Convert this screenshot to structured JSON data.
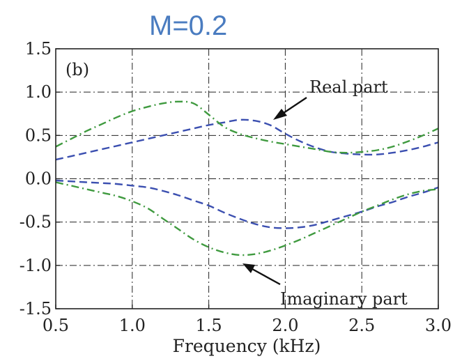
{
  "chart_data": {
    "type": "line",
    "title": "M=0.2",
    "panel_label": "(b)",
    "xlabel": "Frequency (kHz)",
    "ylabel": "",
    "xlim": [
      0.5,
      3.0
    ],
    "ylim": [
      -1.5,
      1.5
    ],
    "xticks": [
      "0.5",
      "1.0",
      "1.5",
      "2.0",
      "2.5",
      "3.0"
    ],
    "yticks": [
      "1.5",
      "1.0",
      "0.5",
      "0.0",
      "-0.5",
      "-1.0",
      "-1.5"
    ],
    "grid": true,
    "annotations": [
      {
        "text": "Real part"
      },
      {
        "text": "Imaginary part"
      }
    ],
    "series": [
      {
        "part": "real",
        "style": "dashed",
        "color": "#3b4fb0",
        "x": [
          0.5,
          0.6,
          0.7,
          0.8,
          0.9,
          1.0,
          1.1,
          1.2,
          1.3,
          1.4,
          1.5,
          1.6,
          1.7,
          1.8,
          1.9,
          2.0,
          2.1,
          2.2,
          2.3,
          2.4,
          2.5,
          2.6,
          2.7,
          2.8,
          2.9,
          3.0
        ],
        "y": [
          0.22,
          0.26,
          0.3,
          0.34,
          0.38,
          0.42,
          0.46,
          0.5,
          0.54,
          0.58,
          0.62,
          0.65,
          0.68,
          0.67,
          0.62,
          0.52,
          0.43,
          0.36,
          0.31,
          0.29,
          0.28,
          0.28,
          0.3,
          0.33,
          0.37,
          0.42
        ]
      },
      {
        "part": "real",
        "style": "dash-dot",
        "color": "#3f9a3f",
        "x": [
          0.5,
          0.6,
          0.7,
          0.8,
          0.9,
          1.0,
          1.1,
          1.2,
          1.3,
          1.4,
          1.5,
          1.6,
          1.7,
          1.8,
          1.9,
          2.0,
          2.1,
          2.2,
          2.3,
          2.4,
          2.5,
          2.6,
          2.7,
          2.8,
          2.9,
          3.0
        ],
        "y": [
          0.37,
          0.46,
          0.55,
          0.63,
          0.71,
          0.78,
          0.83,
          0.87,
          0.89,
          0.87,
          0.74,
          0.6,
          0.52,
          0.47,
          0.43,
          0.4,
          0.37,
          0.34,
          0.31,
          0.3,
          0.31,
          0.33,
          0.37,
          0.43,
          0.5,
          0.58
        ]
      },
      {
        "part": "imaginary",
        "style": "dashed",
        "color": "#3b4fb0",
        "x": [
          0.5,
          0.6,
          0.7,
          0.8,
          0.9,
          1.0,
          1.1,
          1.2,
          1.3,
          1.4,
          1.5,
          1.6,
          1.7,
          1.8,
          1.9,
          2.0,
          2.1,
          2.2,
          2.3,
          2.4,
          2.5,
          2.6,
          2.7,
          2.8,
          2.9,
          3.0
        ],
        "y": [
          -0.02,
          -0.03,
          -0.04,
          -0.05,
          -0.06,
          -0.08,
          -0.1,
          -0.14,
          -0.19,
          -0.25,
          -0.31,
          -0.39,
          -0.46,
          -0.52,
          -0.56,
          -0.57,
          -0.56,
          -0.53,
          -0.48,
          -0.43,
          -0.38,
          -0.32,
          -0.27,
          -0.21,
          -0.16,
          -0.1
        ]
      },
      {
        "part": "imaginary",
        "style": "dash-dot",
        "color": "#3f9a3f",
        "x": [
          0.5,
          0.6,
          0.7,
          0.8,
          0.9,
          1.0,
          1.1,
          1.2,
          1.3,
          1.4,
          1.5,
          1.6,
          1.7,
          1.8,
          1.9,
          2.0,
          2.1,
          2.2,
          2.3,
          2.4,
          2.5,
          2.6,
          2.7,
          2.8,
          2.9,
          3.0
        ],
        "y": [
          -0.04,
          -0.08,
          -0.12,
          -0.16,
          -0.2,
          -0.26,
          -0.34,
          -0.46,
          -0.58,
          -0.7,
          -0.79,
          -0.85,
          -0.88,
          -0.87,
          -0.83,
          -0.77,
          -0.7,
          -0.62,
          -0.54,
          -0.46,
          -0.38,
          -0.31,
          -0.24,
          -0.18,
          -0.14,
          -0.12
        ]
      }
    ]
  }
}
